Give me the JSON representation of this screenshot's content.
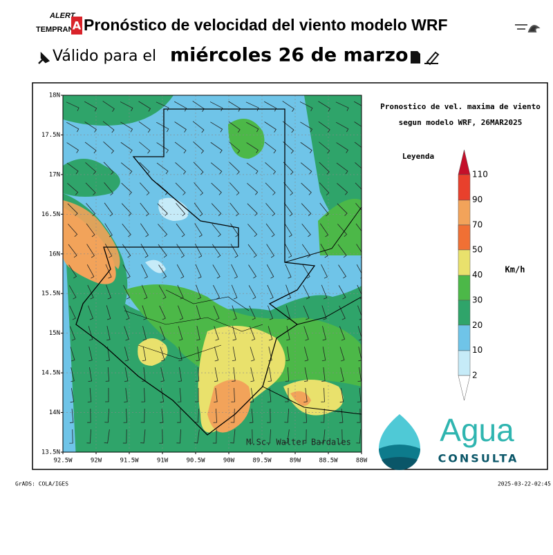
{
  "header": {
    "logo_top": "ALERT",
    "logo_bottom": "TEMPRAN",
    "logo_mark": "A",
    "title": "Pronóstico de velocidad del viento modelo WRF",
    "valid_prefix": "Válido para el",
    "valid_date": "miércoles 26 de marzo"
  },
  "map": {
    "title_lines": [
      "Pronostico de vel. maxima de viento",
      "segun modelo WRF, 26MAR2025"
    ],
    "lat_labels": [
      "18N",
      "17.5N",
      "17N",
      "16.5N",
      "16N",
      "15.5N",
      "15N",
      "14.5N",
      "14N",
      "13.5N"
    ],
    "lon_labels": [
      "92.5W",
      "92W",
      "91.5W",
      "91W",
      "90.5W",
      "90W",
      "89.5W",
      "89W",
      "88.5W",
      "88W"
    ],
    "credit": "M.Sc. Walter Bardales"
  },
  "legend": {
    "title": "Leyenda",
    "unit": "Km/h",
    "levels": [
      "110",
      "90",
      "70",
      "50",
      "40",
      "30",
      "20",
      "10",
      "2"
    ]
  },
  "brand": {
    "name": "Agua",
    "subtitle": "CONSULTA"
  },
  "footer": {
    "left": "GrADS: COLA/IGES",
    "right": "2025-03-22-02:45"
  }
}
